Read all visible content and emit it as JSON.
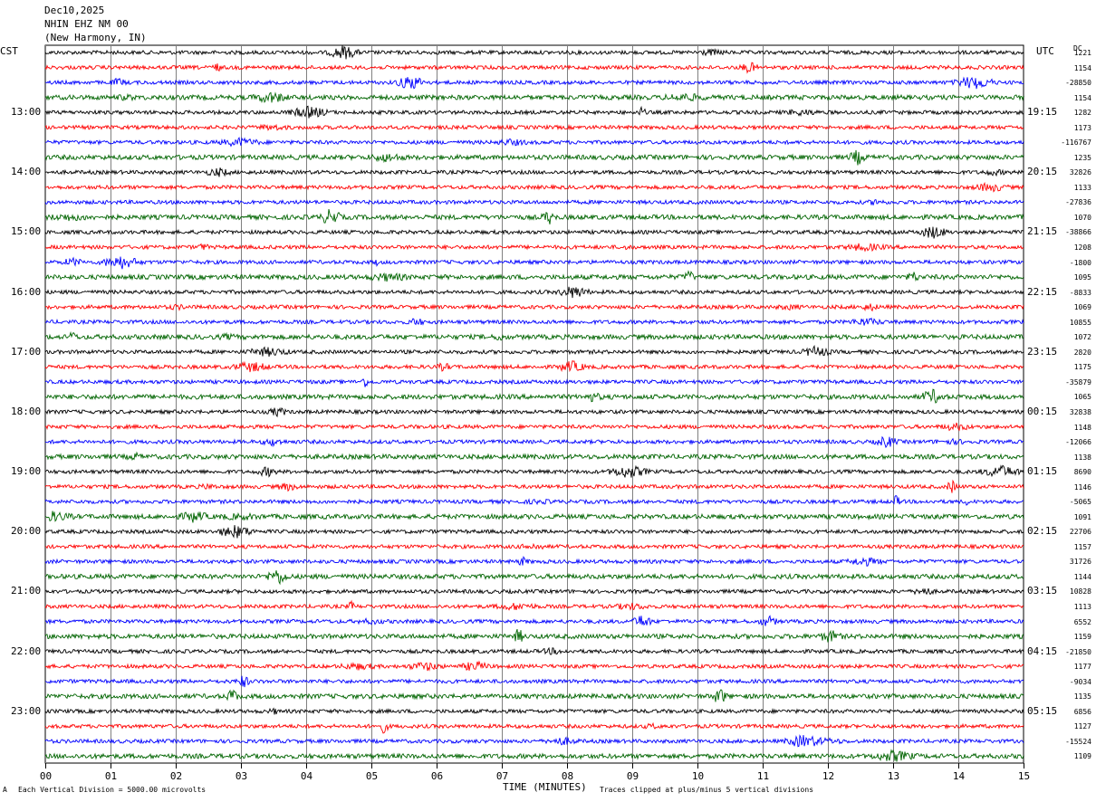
{
  "header": {
    "date": "Dec10,2025",
    "station": "NHIN EHZ NM 00",
    "location": "(New Harmony, IN)"
  },
  "left_tz": "CST",
  "right_tz": "UTC",
  "dc_label": "DC",
  "footer": {
    "scale_note": "Each Vertical Division = 5000.00 microvolts",
    "xlabel": "TIME (MINUTES)",
    "clip_note": "Traces clipped at plus/minus 5 vertical divisions",
    "corner_mark": "A"
  },
  "chart_data": {
    "type": "line",
    "title": "NHIN EHZ NM 00",
    "xlabel": "TIME (MINUTES)",
    "x_ticks": [
      "00",
      "01",
      "02",
      "03",
      "04",
      "05",
      "06",
      "07",
      "08",
      "09",
      "10",
      "11",
      "12",
      "13",
      "14",
      "15"
    ],
    "xlim": [
      0,
      15
    ],
    "trace_colors": [
      "#000000",
      "#ff0000",
      "#0000ff",
      "#006400"
    ],
    "grid": true,
    "left_hour_labels": [
      "13:00",
      "14:00",
      "15:00",
      "16:00",
      "17:00",
      "18:00",
      "19:00",
      "20:00",
      "21:00",
      "22:00",
      "23:00"
    ],
    "right_hour_labels": [
      "19:15",
      "20:15",
      "21:15",
      "22:15",
      "23:15",
      "00:15",
      "01:15",
      "02:15",
      "03:15",
      "04:15",
      "05:15"
    ],
    "trace_count": 48,
    "dc_offsets": [
      "1221",
      "1154",
      "-28850",
      "1154",
      "1282",
      "1173",
      "-116767",
      "1235",
      "32826",
      "1133",
      "-27836",
      "1070",
      "-38866",
      "1208",
      "-1800",
      "1095",
      "-8833",
      "1069",
      "10855",
      "1072",
      "2820",
      "1175",
      "-35879",
      "1065",
      "32838",
      "1148",
      "-12066",
      "1138",
      "8690",
      "1146",
      "-5065",
      "1091",
      "22706",
      "1157",
      "31726",
      "1144",
      "10828",
      "1113",
      "6552",
      "1159",
      "-21850",
      "1177",
      "-9034",
      "1135",
      "6856",
      "1127",
      "-15524",
      "1109"
    ]
  }
}
